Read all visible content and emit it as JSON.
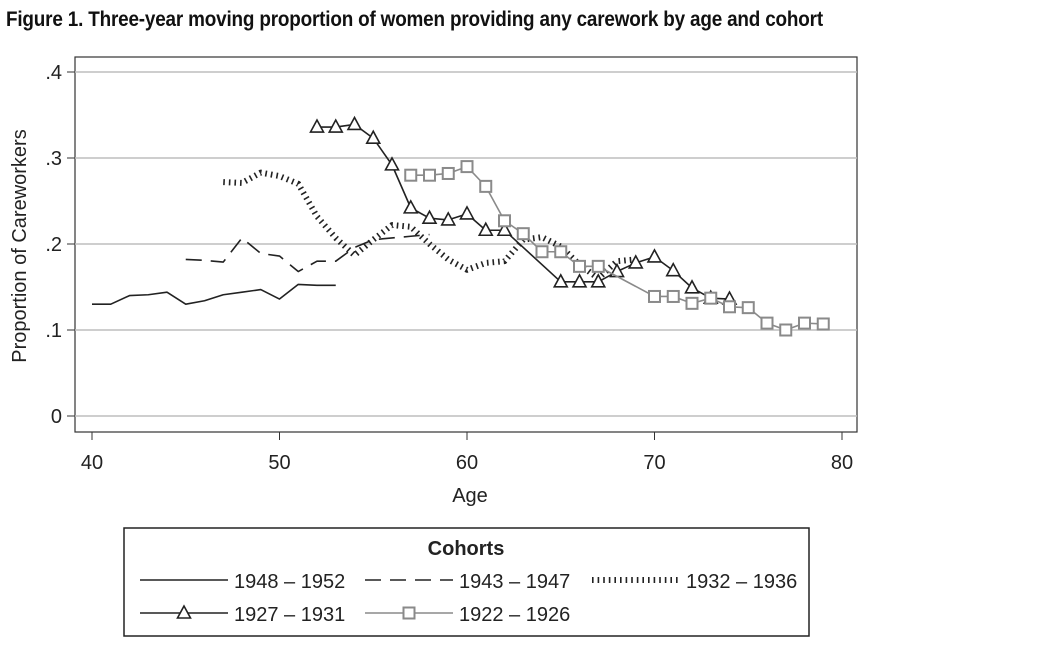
{
  "title": "Figure 1.  Three-year moving proportion of women providing any carework by age and cohort",
  "chart_data": {
    "type": "line",
    "title": "Figure 1.  Three-year moving proportion of women providing any carework by age and cohort",
    "xlabel": "Age",
    "ylabel": "Proportion of Careworkers",
    "xlim": [
      39,
      81
    ],
    "ylim": [
      -0.015,
      0.42
    ],
    "xticks": [
      40,
      50,
      60,
      70,
      80
    ],
    "xtick_labels": [
      "40",
      "50",
      "60",
      "70",
      "80"
    ],
    "yticks": [
      0,
      0.1,
      0.2,
      0.3,
      0.4
    ],
    "ytick_labels": [
      "0",
      ".1",
      ".2",
      ".3",
      ".4"
    ],
    "grid": "horizontal",
    "legend": {
      "title": "Cohorts",
      "placement": "bottom"
    },
    "series": [
      {
        "name": "1948 – 1952",
        "style": "solid",
        "color": "#222222",
        "marker": "none",
        "x": [
          40,
          41,
          42,
          43,
          44,
          45,
          46,
          47,
          48,
          49,
          50,
          51,
          52,
          53
        ],
        "y": [
          0.13,
          0.13,
          0.14,
          0.141,
          0.144,
          0.13,
          0.134,
          0.141,
          0.144,
          0.147,
          0.136,
          0.153,
          0.152,
          0.152
        ]
      },
      {
        "name": "1943 – 1947",
        "style": "dashed",
        "color": "#222222",
        "marker": "none",
        "x": [
          45,
          46,
          47,
          48,
          49,
          50,
          51,
          52,
          53,
          54,
          55,
          56,
          57,
          58
        ],
        "y": [
          0.182,
          0.181,
          0.179,
          0.207,
          0.189,
          0.186,
          0.168,
          0.18,
          0.18,
          0.196,
          0.205,
          0.207,
          0.209,
          0.211
        ]
      },
      {
        "name": "1932 – 1936",
        "style": "dotted",
        "color": "#222222",
        "marker": "none",
        "x": [
          47,
          48,
          49,
          50,
          51,
          52,
          53,
          54,
          55,
          56,
          57,
          58,
          59,
          60,
          61,
          62,
          63,
          64,
          65,
          66,
          67,
          68,
          69
        ],
        "y": [
          0.272,
          0.271,
          0.283,
          0.279,
          0.27,
          0.232,
          0.207,
          0.187,
          0.205,
          0.222,
          0.22,
          0.2,
          0.182,
          0.17,
          0.178,
          0.18,
          0.205,
          0.208,
          0.197,
          0.176,
          0.16,
          0.18,
          0.182
        ]
      },
      {
        "name": "1927 – 1931",
        "style": "solid",
        "color": "#222222",
        "marker": "triangle",
        "x": [
          52,
          53,
          54,
          55,
          56,
          57,
          58,
          59,
          60,
          61,
          62,
          65,
          66,
          67,
          68,
          69,
          70,
          71,
          72,
          73,
          74
        ],
        "y": [
          0.336,
          0.336,
          0.339,
          0.323,
          0.292,
          0.242,
          0.23,
          0.228,
          0.235,
          0.216,
          0.216,
          0.156,
          0.156,
          0.156,
          0.168,
          0.178,
          0.185,
          0.169,
          0.149,
          0.137,
          0.136
        ]
      },
      {
        "name": "1922 – 1926",
        "style": "solid",
        "color": "#8a8a8a",
        "marker": "square",
        "x": [
          57,
          58,
          59,
          60,
          61,
          62,
          63,
          64,
          65,
          66,
          67,
          70,
          71,
          72,
          73,
          74,
          75,
          76,
          77,
          78,
          79
        ],
        "y": [
          0.28,
          0.28,
          0.282,
          0.29,
          0.267,
          0.227,
          0.212,
          0.191,
          0.191,
          0.174,
          0.174,
          0.139,
          0.139,
          0.131,
          0.137,
          0.127,
          0.126,
          0.108,
          0.1,
          0.108,
          0.107
        ]
      }
    ]
  }
}
